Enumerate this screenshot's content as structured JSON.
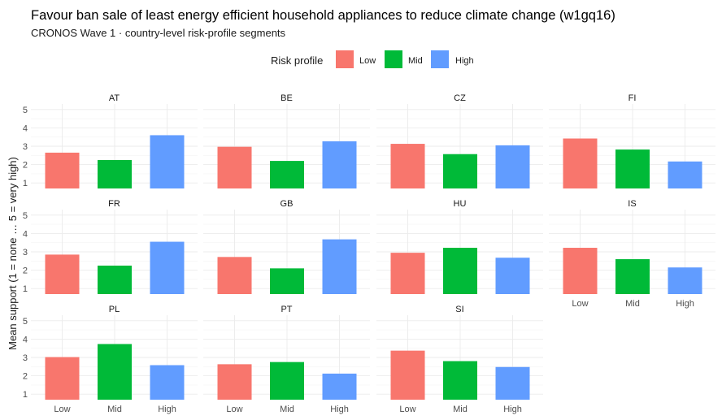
{
  "chart_data": {
    "type": "bar",
    "title": "Favour ban sale of least energy efficient household appliances to reduce climate change  (w1gq16)",
    "subtitle": "CRONOS Wave 1 · country-level risk-profile segments",
    "ylabel": "Mean support (1 = none … 5 = very high)",
    "xlabel": "",
    "ylim": [
      0.7,
      5.3
    ],
    "yticks": [
      "1",
      "2",
      "3",
      "4",
      "5"
    ],
    "categories": [
      "Low",
      "Mid",
      "High"
    ],
    "legend": {
      "title": "Risk profile",
      "position": "top",
      "entries": [
        {
          "label": "Low",
          "color": "#F8766D"
        },
        {
          "label": "Mid",
          "color": "#00BA38"
        },
        {
          "label": "High",
          "color": "#619CFF"
        }
      ]
    },
    "panels": [
      {
        "label": "AT",
        "values": [
          2.65,
          2.25,
          3.6
        ]
      },
      {
        "label": "BE",
        "values": [
          2.97,
          2.2,
          3.27
        ]
      },
      {
        "label": "CZ",
        "values": [
          3.13,
          2.57,
          3.05
        ]
      },
      {
        "label": "FI",
        "values": [
          3.42,
          2.82,
          2.17
        ]
      },
      {
        "label": "FR",
        "values": [
          2.85,
          2.25,
          3.55
        ]
      },
      {
        "label": "GB",
        "values": [
          2.72,
          2.1,
          3.68
        ]
      },
      {
        "label": "HU",
        "values": [
          2.95,
          3.22,
          2.68
        ]
      },
      {
        "label": "IS",
        "values": [
          3.22,
          2.6,
          2.15
        ]
      },
      {
        "label": "PL",
        "values": [
          3.02,
          3.73,
          2.58
        ]
      },
      {
        "label": "PT",
        "values": [
          2.63,
          2.75,
          2.12
        ]
      },
      {
        "label": "SI",
        "values": [
          3.37,
          2.8,
          2.48
        ]
      }
    ]
  }
}
